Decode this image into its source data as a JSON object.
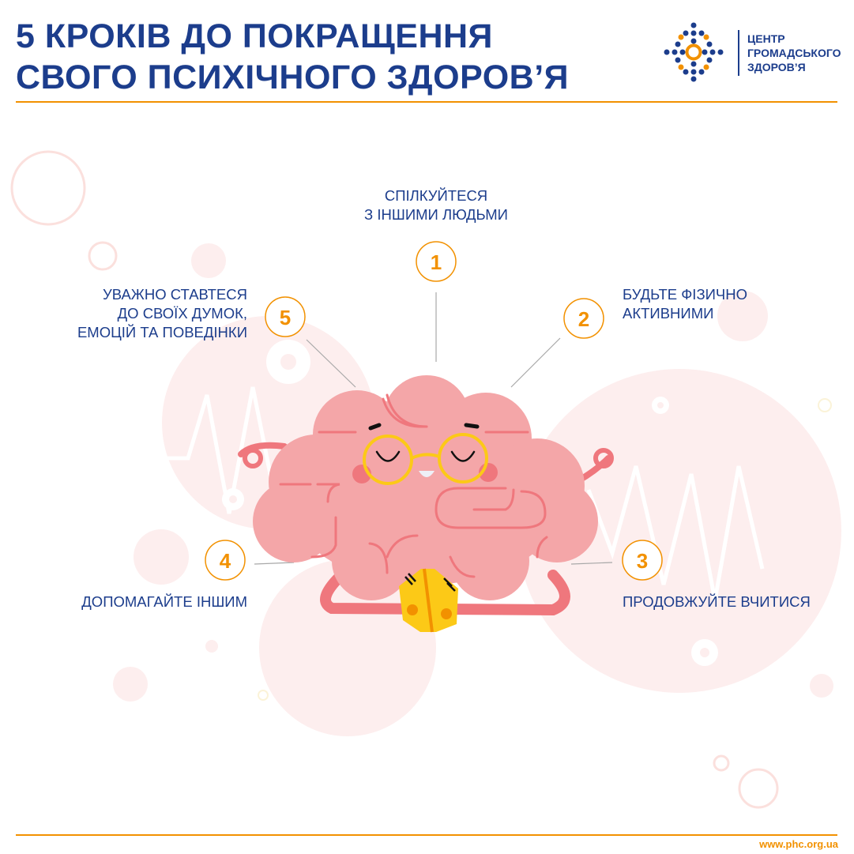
{
  "header": {
    "title_line1": "5 КРОКІВ ДО ПОКРАЩЕННЯ",
    "title_line2": "СВОГО ПСИХІЧНОГО ЗДОРОВ’Я",
    "logo": {
      "line1": "ЦЕНТР",
      "line2": "ГРОМАДСЬКОГО",
      "line3": "ЗДОРОВ’Я"
    }
  },
  "steps": [
    {
      "number": "1",
      "line1": "СПІЛКУЙТЕСЯ",
      "line2": "З ІНШИМИ ЛЮДЬМИ"
    },
    {
      "number": "2",
      "line1": "БУДЬТЕ ФІЗИЧНО",
      "line2": "АКТИВНИМИ"
    },
    {
      "number": "3",
      "line1": "ПРОДОВЖУЙТЕ ВЧИТИСЯ"
    },
    {
      "number": "4",
      "line1": "ДОПОМАГАЙТЕ ІНШИМ"
    },
    {
      "number": "5",
      "line1": "УВАЖНО СТАВТЕСЯ",
      "line2": "ДО СВОЇХ ДУМОК,",
      "line3": "ЕМОЦІЙ ТА ПОВЕДІНКИ"
    }
  ],
  "footer": {
    "url": "www.phc.org.ua"
  },
  "colors": {
    "brand_blue": "#1c3d8c",
    "accent_orange": "#f29100",
    "brain_pink": "#f4a6a8",
    "brain_line": "#ef777d",
    "background_circle": "#fdeeee",
    "glasses_yellow": "#fcc917"
  }
}
